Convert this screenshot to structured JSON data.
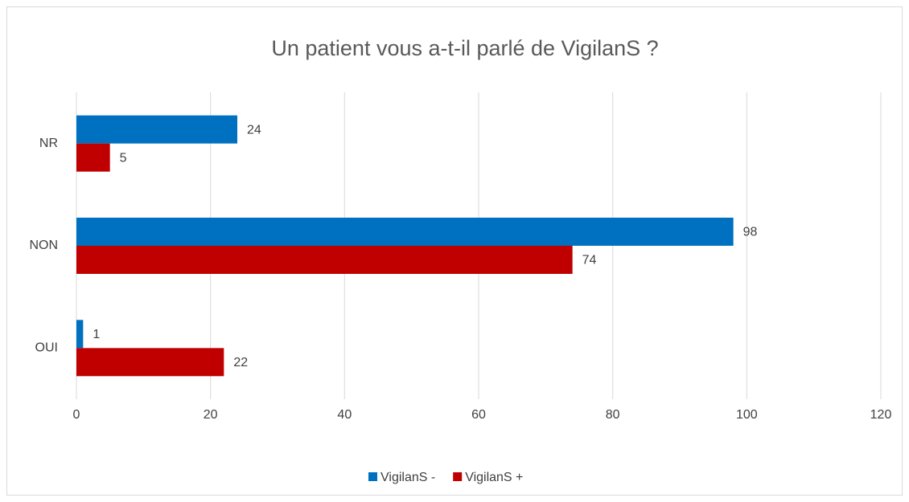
{
  "chart_data": {
    "type": "bar",
    "orientation": "horizontal",
    "title": "Un patient vous a-t-il parlé de VigilanS ?",
    "categories": [
      "NR",
      "NON",
      "OUI"
    ],
    "series": [
      {
        "name": "VigilanS -",
        "color": "#0070c0",
        "values": [
          24,
          98,
          1
        ]
      },
      {
        "name": "VigilanS +",
        "color": "#c00000",
        "values": [
          5,
          74,
          22
        ]
      }
    ],
    "xlim": [
      0,
      120
    ],
    "xticks": [
      0,
      20,
      40,
      60,
      80,
      100,
      120
    ],
    "grid": true,
    "legend": "bottom"
  }
}
